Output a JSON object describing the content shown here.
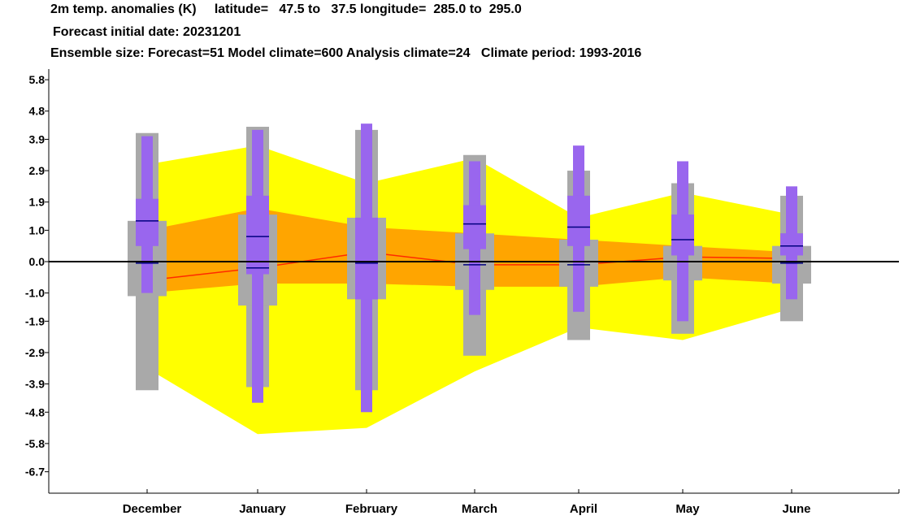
{
  "header": {
    "line1": "2m temp. anomalies (K)     latitude=   47.5 to   37.5 longitude=  285.0 to  295.0",
    "line2": "Forecast initial date: 20231201",
    "line3": "Ensemble size: Forecast=51 Model climate=600 Analysis climate=24   Climate period: 1993-2016"
  },
  "colors": {
    "climate_outer": "#ffff00",
    "climate_inner": "#ffa500",
    "climate_median": "#ff2a00",
    "model_climate": "#a9a9a9",
    "forecast": "#9966ee",
    "forecast_median": "#000080",
    "zero_line": "#000000"
  },
  "chart_data": {
    "type": "boxplot",
    "categories": [
      "December",
      "January",
      "February",
      "March",
      "April",
      "May",
      "June"
    ],
    "ylim": [
      -7.3,
      6.2
    ],
    "yticks": [
      "5.8",
      "4.8",
      "3.9",
      "2.9",
      "1.9",
      "1.0",
      "0.0",
      "-1.0",
      "-1.9",
      "-2.9",
      "-3.9",
      "-4.8",
      "-5.8",
      "-6.7"
    ],
    "ytick_values": [
      5.8,
      4.8,
      3.9,
      2.9,
      1.9,
      1.0,
      0.0,
      -1.0,
      -1.9,
      -2.9,
      -3.9,
      -4.8,
      -5.8,
      -6.7
    ],
    "analysis_climate": {
      "outer_upper": [
        3.1,
        3.7,
        2.5,
        3.3,
        1.4,
        2.2,
        1.5
      ],
      "outer_lower": [
        -3.4,
        -5.5,
        -5.3,
        -3.5,
        -2.1,
        -2.5,
        -1.5
      ],
      "inner_upper": [
        1.0,
        1.7,
        1.1,
        0.9,
        0.7,
        0.5,
        0.3
      ],
      "inner_lower": [
        -1.0,
        -0.7,
        -0.7,
        -0.8,
        -0.8,
        -0.5,
        -0.7
      ],
      "median": [
        -0.6,
        -0.2,
        0.3,
        -0.1,
        -0.1,
        0.15,
        0.1
      ]
    },
    "series": [
      {
        "name": "model_climate",
        "min": [
          -4.1,
          -4.0,
          -4.1,
          -3.0,
          -2.5,
          -2.3,
          -1.9
        ],
        "q1": [
          -1.1,
          -1.4,
          -1.2,
          -0.9,
          -0.8,
          -0.6,
          -0.7
        ],
        "median": [
          0.0,
          0.0,
          0.0,
          0.0,
          0.0,
          0.0,
          0.0
        ],
        "q3": [
          1.3,
          1.5,
          1.4,
          0.9,
          0.7,
          0.5,
          0.5
        ],
        "max": [
          4.1,
          4.3,
          4.2,
          3.4,
          2.9,
          2.5,
          2.1
        ]
      },
      {
        "name": "forecast",
        "min": [
          -1.0,
          -4.5,
          -4.8,
          -1.7,
          -1.6,
          -1.9,
          -1.2
        ],
        "q10": [
          0.5,
          -0.4,
          -1.2,
          0.4,
          0.5,
          0.2,
          0.2
        ],
        "q25": [
          0.5,
          -0.4,
          -1.2,
          0.4,
          0.5,
          0.2,
          0.2
        ],
        "median": [
          1.3,
          0.8,
          0.0,
          1.2,
          1.1,
          0.7,
          0.5
        ],
        "q75": [
          2.0,
          2.1,
          1.4,
          1.8,
          2.1,
          1.5,
          0.9
        ],
        "q90": [
          2.0,
          2.1,
          1.4,
          1.8,
          2.1,
          1.5,
          0.9
        ],
        "max": [
          4.0,
          4.2,
          4.4,
          3.2,
          3.7,
          3.2,
          2.4
        ],
        "inner_lower": [
          -1.0,
          -4.0,
          -3.8,
          -1.7,
          -1.6,
          -1.9,
          -1.2
        ],
        "inner_upper": [
          4.0,
          4.2,
          4.4,
          3.2,
          3.7,
          3.2,
          2.4
        ]
      }
    ],
    "analysis_median_mark": [
      -0.05,
      -0.2,
      -0.05,
      -0.1,
      -0.1,
      0.0,
      -0.05
    ]
  }
}
